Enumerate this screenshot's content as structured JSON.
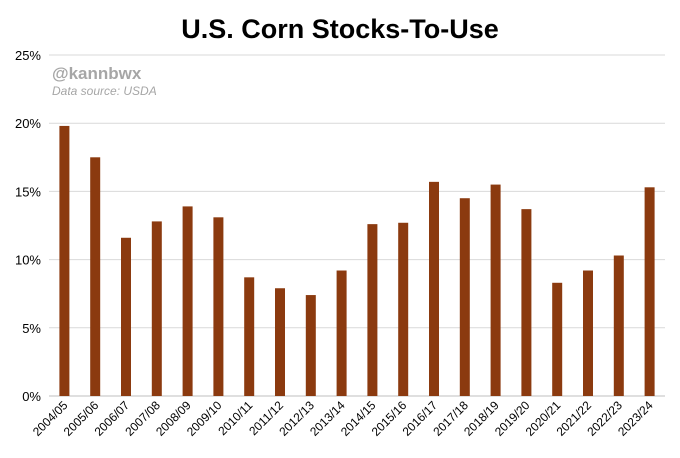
{
  "chart_data": {
    "type": "bar",
    "title": "U.S. Corn Stocks-To-Use",
    "watermark": "@kannbwx",
    "source": "Data source: USDA",
    "categories": [
      "2004/05",
      "2005/06",
      "2006/07",
      "2007/08",
      "2008/09",
      "2009/10",
      "2010/11",
      "2011/12",
      "2012/13",
      "2013/14",
      "2014/15",
      "2015/16",
      "2016/17",
      "2017/18",
      "2018/19",
      "2019/20",
      "2020/21",
      "2021/22",
      "2022/23",
      "2023/24"
    ],
    "values": [
      19.8,
      17.5,
      11.6,
      12.8,
      13.9,
      13.1,
      8.7,
      7.9,
      7.4,
      9.2,
      12.6,
      12.7,
      15.7,
      14.5,
      15.5,
      13.7,
      8.3,
      9.2,
      10.3,
      15.3
    ],
    "xlabel": "",
    "ylabel": "",
    "ylim": [
      0,
      25
    ],
    "yticks": [
      "0%",
      "5%",
      "10%",
      "15%",
      "20%",
      "25%"
    ],
    "grid": true,
    "bar_color": "#8b3a0f",
    "grid_color": "#d9d9d9"
  }
}
